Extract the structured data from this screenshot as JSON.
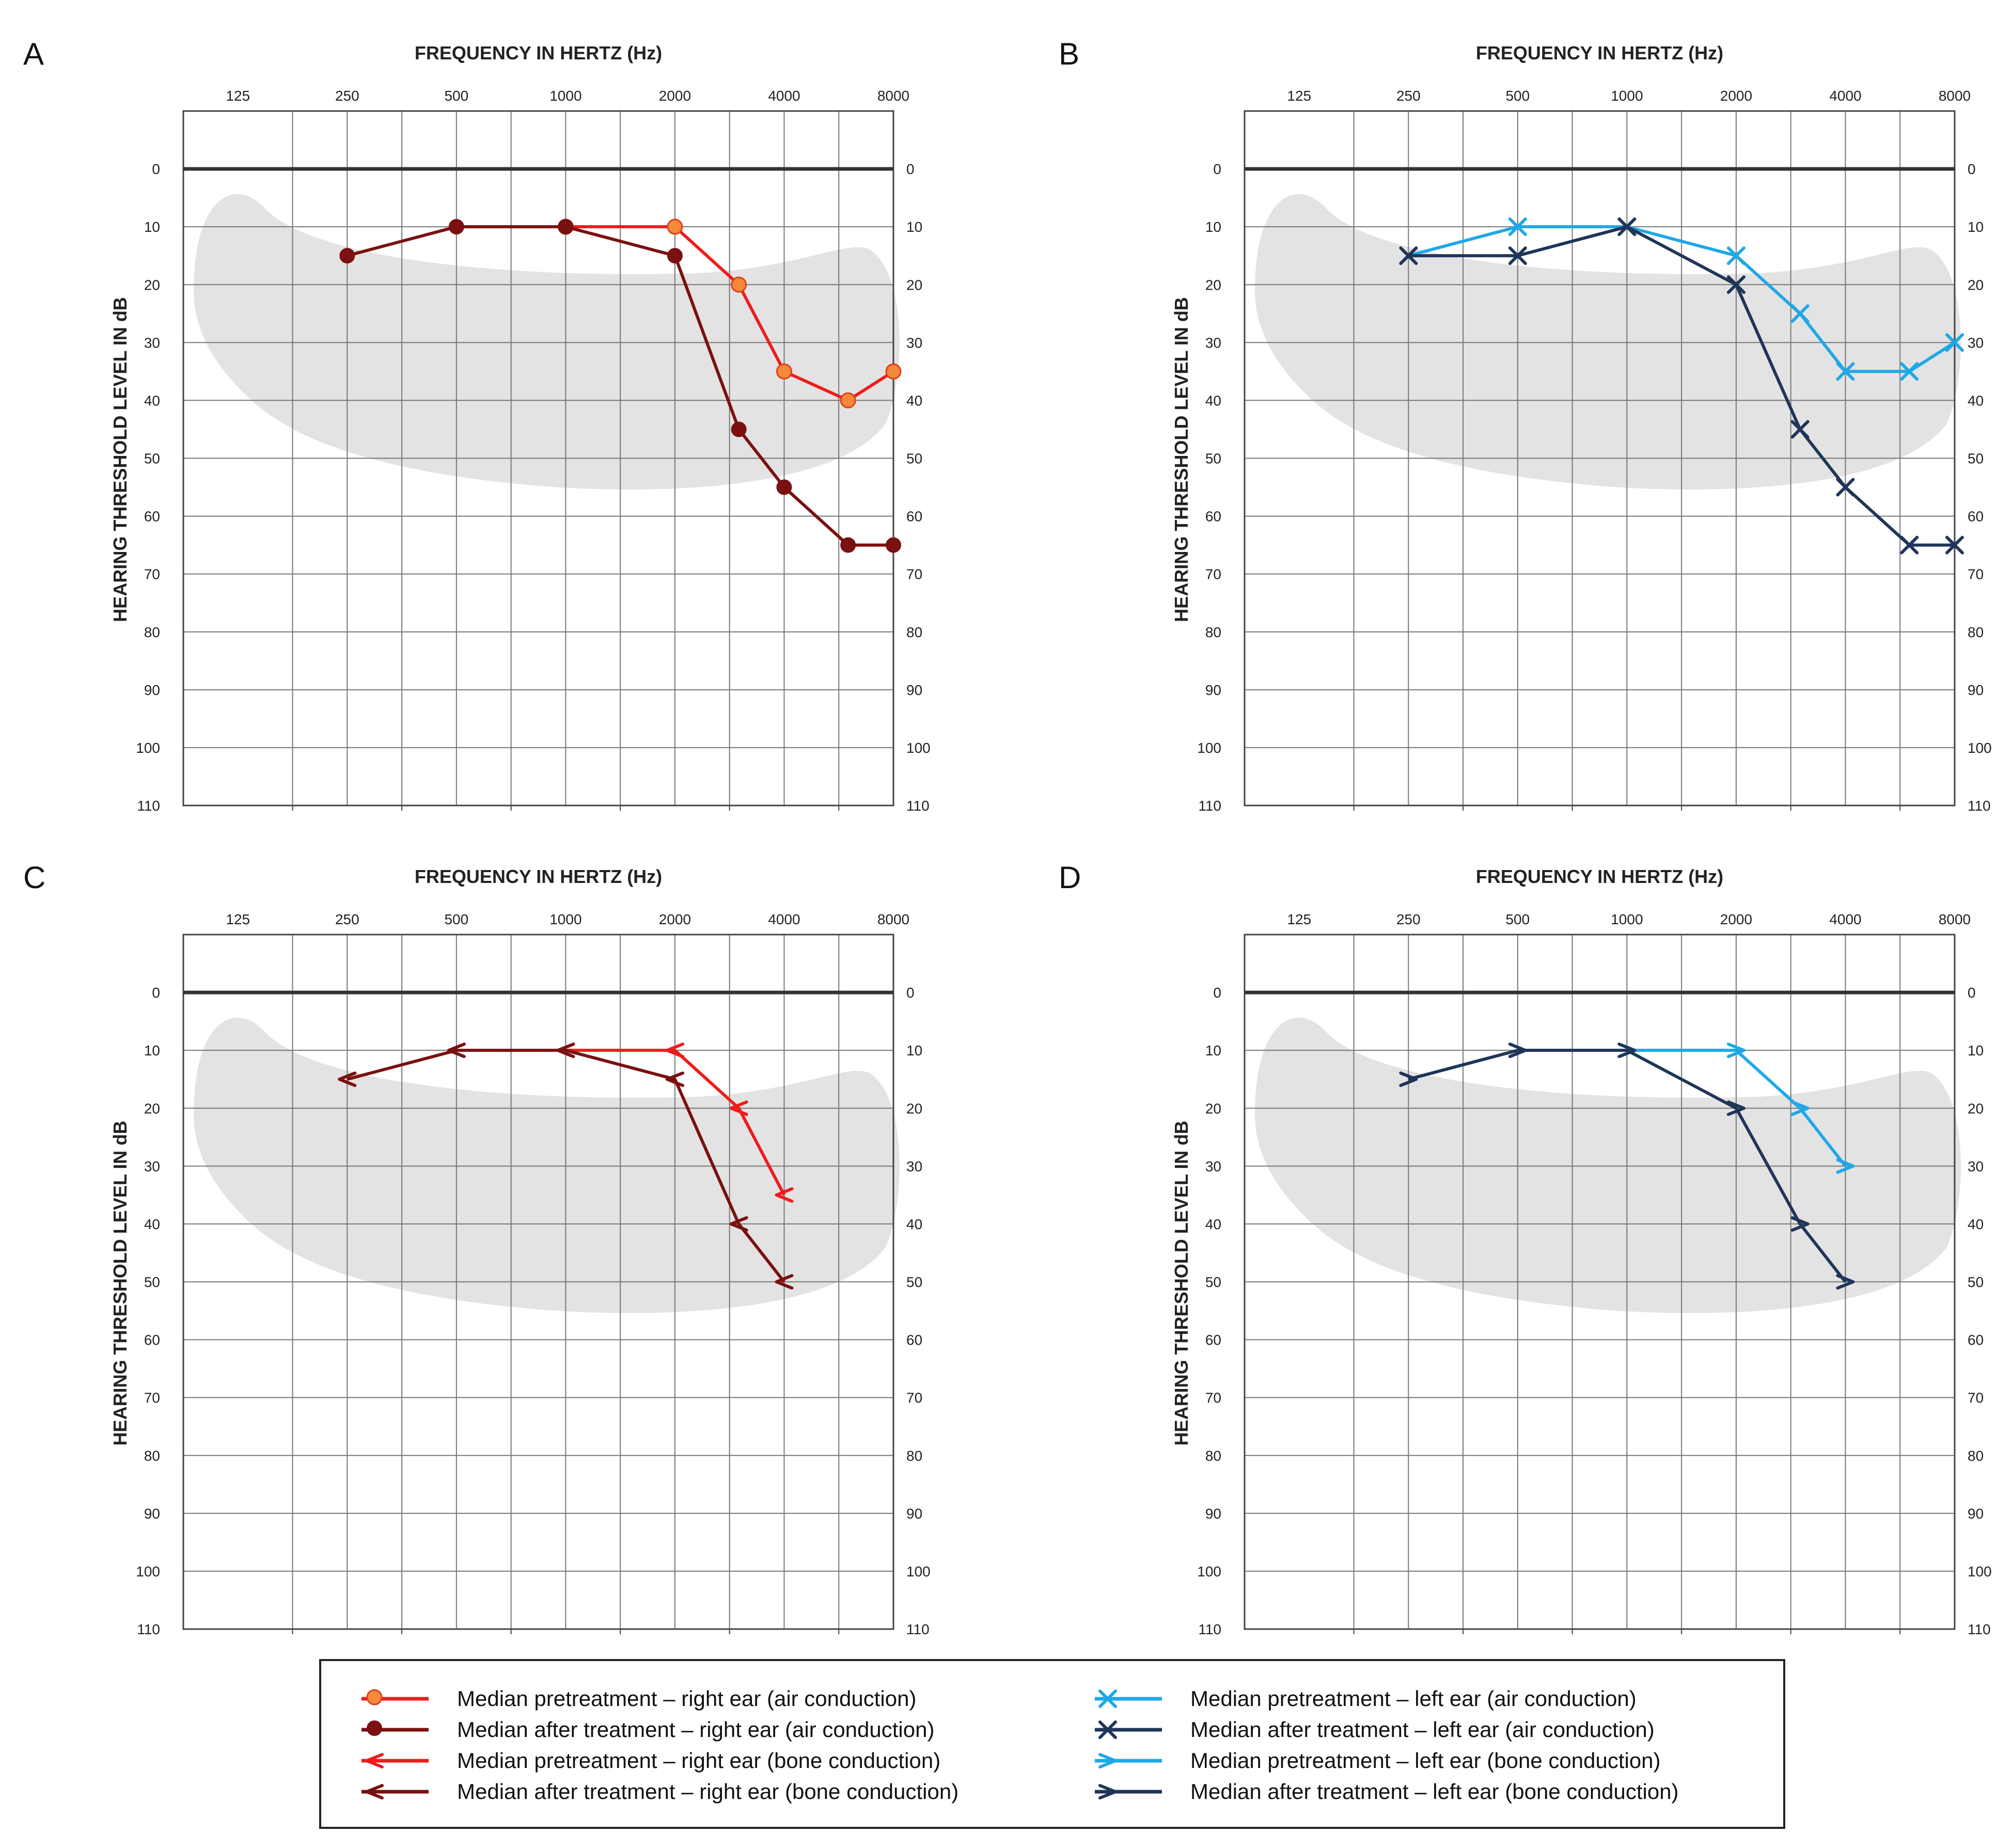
{
  "chart_data": [
    {
      "panel": "A",
      "type": "line",
      "title": "FREQUENCY IN HERTZ (Hz)",
      "xlabel": "FREQUENCY IN HERTZ (Hz)",
      "ylabel": "HEARING THRESHOLD LEVEL IN dB",
      "x_ticks": [
        "125",
        "250",
        "500",
        "1000",
        "2000",
        "4000",
        "8000"
      ],
      "y_ticks": [
        "0",
        "10",
        "20",
        "30",
        "40",
        "50",
        "60",
        "70",
        "80",
        "90",
        "100",
        "110"
      ],
      "ylim": [
        -10,
        110
      ],
      "x_scale": "octave",
      "grid": true,
      "series": [
        {
          "name": "Median pretreatment – right ear (air conduction)",
          "color": "#ee1c1c",
          "marker": "circle-orange",
          "x": [
            1000,
            2000,
            3000,
            4000,
            6000,
            8000
          ],
          "values": [
            10,
            10,
            20,
            35,
            40,
            35
          ]
        },
        {
          "name": "Median after treatment – right ear (air conduction)",
          "color": "#7a1010",
          "marker": "circle-dark",
          "x": [
            250,
            500,
            1000,
            2000,
            3000,
            4000,
            6000,
            8000
          ],
          "values": [
            15,
            10,
            10,
            15,
            45,
            55,
            65,
            65
          ]
        }
      ]
    },
    {
      "panel": "B",
      "type": "line",
      "title": "FREQUENCY IN HERTZ (Hz)",
      "xlabel": "FREQUENCY IN HERTZ (Hz)",
      "ylabel": "HEARING THRESHOLD LEVEL IN dB",
      "x_ticks": [
        "125",
        "250",
        "500",
        "1000",
        "2000",
        "4000",
        "8000"
      ],
      "y_ticks": [
        "0",
        "10",
        "20",
        "30",
        "40",
        "50",
        "60",
        "70",
        "80",
        "90",
        "100",
        "110"
      ],
      "ylim": [
        -10,
        110
      ],
      "x_scale": "octave",
      "grid": true,
      "series": [
        {
          "name": "Median pretreatment – left ear (air conduction)",
          "color": "#1fa8e6",
          "marker": "x",
          "x": [
            250,
            500,
            1000,
            2000,
            3000,
            4000,
            6000,
            8000
          ],
          "values": [
            15,
            10,
            10,
            15,
            25,
            35,
            35,
            30
          ]
        },
        {
          "name": "Median after treatment – left ear (air conduction)",
          "color": "#1f3559",
          "marker": "x",
          "x": [
            250,
            500,
            1000,
            2000,
            3000,
            4000,
            6000,
            8000
          ],
          "values": [
            15,
            15,
            10,
            20,
            45,
            55,
            65,
            65
          ]
        }
      ]
    },
    {
      "panel": "C",
      "type": "line",
      "title": "FREQUENCY IN HERTZ (Hz)",
      "xlabel": "FREQUENCY IN HERTZ (Hz)",
      "ylabel": "HEARING THRESHOLD LEVEL IN dB",
      "x_ticks": [
        "125",
        "250",
        "500",
        "1000",
        "2000",
        "4000",
        "8000"
      ],
      "y_ticks": [
        "0",
        "10",
        "20",
        "30",
        "40",
        "50",
        "60",
        "70",
        "80",
        "90",
        "100",
        "110"
      ],
      "ylim": [
        -10,
        110
      ],
      "x_scale": "octave",
      "grid": true,
      "series": [
        {
          "name": "Median pretreatment – right ear (bone conduction)",
          "color": "#ee1c1c",
          "marker": "lt",
          "x": [
            1000,
            2000,
            3000,
            4000
          ],
          "values": [
            10,
            10,
            20,
            35
          ]
        },
        {
          "name": "Median after treatment – right ear (bone conduction)",
          "color": "#7a1010",
          "marker": "lt",
          "x": [
            250,
            500,
            1000,
            2000,
            3000,
            4000
          ],
          "values": [
            15,
            10,
            10,
            15,
            40,
            50
          ]
        }
      ]
    },
    {
      "panel": "D",
      "type": "line",
      "title": "FREQUENCY IN HERTZ (Hz)",
      "xlabel": "FREQUENCY IN HERTZ (Hz)",
      "ylabel": "HEARING THRESHOLD LEVEL IN dB",
      "x_ticks": [
        "125",
        "250",
        "500",
        "1000",
        "2000",
        "4000",
        "8000"
      ],
      "y_ticks": [
        "0",
        "10",
        "20",
        "30",
        "40",
        "50",
        "60",
        "70",
        "80",
        "90",
        "100",
        "110"
      ],
      "ylim": [
        -10,
        110
      ],
      "x_scale": "octave",
      "grid": true,
      "series": [
        {
          "name": "Median pretreatment – left ear (bone conduction)",
          "color": "#1fa8e6",
          "marker": "gt",
          "x": [
            1000,
            2000,
            3000,
            4000
          ],
          "values": [
            10,
            10,
            20,
            30
          ]
        },
        {
          "name": "Median after treatment – left ear (bone conduction)",
          "color": "#1f3559",
          "marker": "gt",
          "x": [
            250,
            500,
            1000,
            2000,
            3000,
            4000
          ],
          "values": [
            15,
            10,
            10,
            20,
            40,
            50
          ]
        }
      ]
    }
  ],
  "legend": [
    {
      "label": "Median pretreatment – right ear (air conduction)",
      "color": "#ee1c1c",
      "marker": "circle-orange"
    },
    {
      "label": "Median after treatment – right ear (air conduction)",
      "color": "#7a1010",
      "marker": "circle-dark"
    },
    {
      "label": "Median pretreatment – right ear (bone conduction)",
      "color": "#ee1c1c",
      "marker": "lt"
    },
    {
      "label": "Median after treatment – right ear (bone conduction)",
      "color": "#7a1010",
      "marker": "lt"
    },
    {
      "label": "Median pretreatment – left ear (air conduction)",
      "color": "#1fa8e6",
      "marker": "x"
    },
    {
      "label": "Median after treatment – left ear (air conduction)",
      "color": "#1f3559",
      "marker": "x"
    },
    {
      "label": "Median pretreatment – left ear (bone conduction)",
      "color": "#1fa8e6",
      "marker": "gt"
    },
    {
      "label": "Median after treatment – left ear (bone conduction)",
      "color": "#1f3559",
      "marker": "gt"
    }
  ],
  "colors": {
    "speech_banana": "#e3e3e3",
    "grid": "#777777",
    "zero_line": "#333333",
    "orange_marker": "#f5893c"
  }
}
